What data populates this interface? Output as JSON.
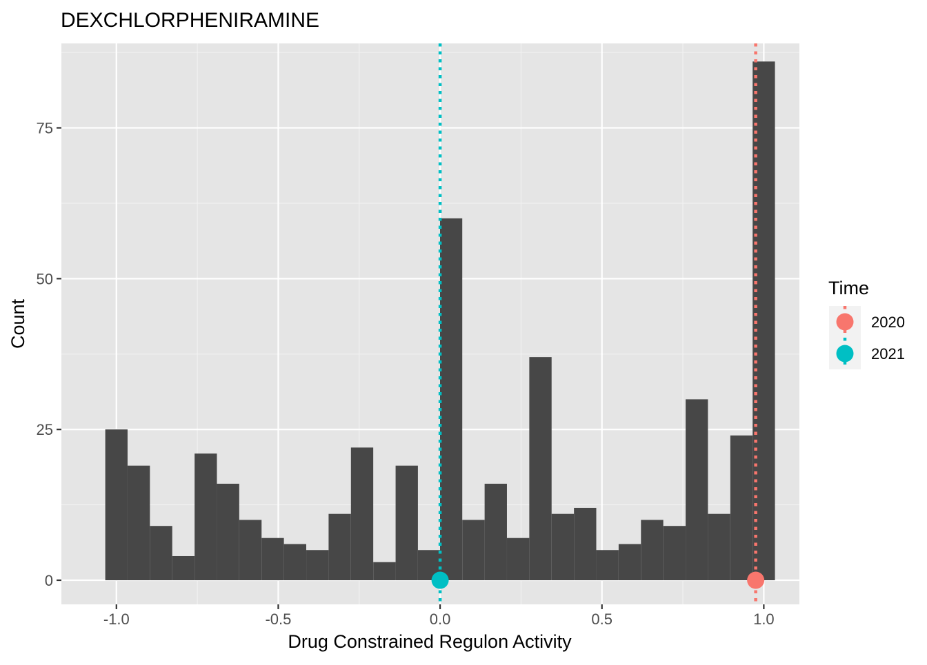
{
  "chart_data": {
    "type": "bar",
    "title": "DEXCHLORPHENIRAMINE",
    "xlabel": "Drug Constrained Regulon Activity",
    "ylabel": "Count",
    "xlim": [
      -1.17,
      1.11
    ],
    "ylim": [
      -4,
      89
    ],
    "x_ticks": [
      -1.0,
      -0.5,
      0.0,
      0.5,
      1.0
    ],
    "x_tick_labels": [
      "-1.0",
      "-0.5",
      "0.0",
      "0.5",
      "1.0"
    ],
    "y_ticks": [
      0,
      25,
      50,
      75
    ],
    "y_tick_labels": [
      "0",
      "25",
      "50",
      "75"
    ],
    "bin_width": 0.0689,
    "bins": [
      {
        "x": -1.0,
        "count": 25
      },
      {
        "x": -0.931,
        "count": 19
      },
      {
        "x": -0.862,
        "count": 9
      },
      {
        "x": -0.793,
        "count": 4
      },
      {
        "x": -0.724,
        "count": 21
      },
      {
        "x": -0.655,
        "count": 16
      },
      {
        "x": -0.586,
        "count": 10
      },
      {
        "x": -0.517,
        "count": 7
      },
      {
        "x": -0.448,
        "count": 6
      },
      {
        "x": -0.379,
        "count": 5
      },
      {
        "x": -0.31,
        "count": 11
      },
      {
        "x": -0.241,
        "count": 22
      },
      {
        "x": -0.172,
        "count": 3
      },
      {
        "x": -0.103,
        "count": 19
      },
      {
        "x": -0.034,
        "count": 5
      },
      {
        "x": 0.034,
        "count": 60
      },
      {
        "x": 0.103,
        "count": 10
      },
      {
        "x": 0.172,
        "count": 16
      },
      {
        "x": 0.241,
        "count": 7
      },
      {
        "x": 0.31,
        "count": 37
      },
      {
        "x": 0.379,
        "count": 11
      },
      {
        "x": 0.448,
        "count": 12
      },
      {
        "x": 0.517,
        "count": 5
      },
      {
        "x": 0.586,
        "count": 6
      },
      {
        "x": 0.655,
        "count": 10
      },
      {
        "x": 0.724,
        "count": 9
      },
      {
        "x": 0.793,
        "count": 30
      },
      {
        "x": 0.862,
        "count": 11
      },
      {
        "x": 0.931,
        "count": 24
      },
      {
        "x": 1.0,
        "count": 86
      }
    ],
    "markers": [
      {
        "name": "2020",
        "x": 0.975,
        "y": 0,
        "color": "#F8766D"
      },
      {
        "name": "2021",
        "x": 0.0,
        "y": 0,
        "color": "#00BFC4"
      }
    ],
    "legend": {
      "title": "Time",
      "position": "right",
      "entries": [
        {
          "label": "2020",
          "color": "#F8766D"
        },
        {
          "label": "2021",
          "color": "#00BFC4"
        }
      ]
    },
    "bar_color": "#474747",
    "panel_background": "#E5E5E5",
    "grid": true
  }
}
